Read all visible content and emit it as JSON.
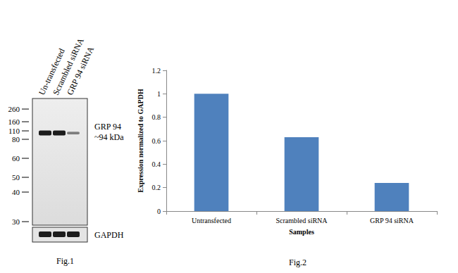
{
  "chart_data": {
    "type": "bar",
    "title": "Fig.2",
    "x_label": "Samples",
    "y_label": "Expression normalized to GAPDH",
    "categories": [
      "Untransfected",
      "Scrambled siRNA",
      "GRP 94 siRNA"
    ],
    "values": [
      1.0,
      0.63,
      0.24
    ],
    "color": "#4f81bd",
    "ylim": [
      0,
      1.2
    ],
    "yticks": [
      0,
      0.2,
      0.4,
      0.6,
      0.8,
      1,
      1.2
    ],
    "grid": false
  },
  "blot": {
    "caption": "Fig.1",
    "lanes": [
      "Un-transfected",
      "Scrambled siRNA",
      "GRP 94 siRNA"
    ],
    "markers": [
      260,
      160,
      110,
      80,
      60,
      50,
      40,
      30
    ],
    "band_label": "GRP 94",
    "band_size": "~94 kDa",
    "loading_control": "GAPDH",
    "band_intensity": [
      1,
      1,
      0.35
    ],
    "control_intensity": [
      1,
      1,
      1
    ]
  }
}
